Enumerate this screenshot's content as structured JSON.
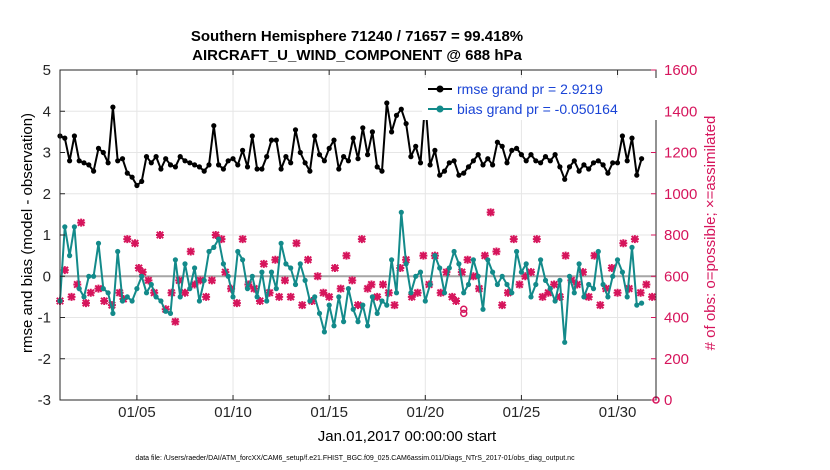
{
  "chart_data": {
    "type": "line",
    "title": "Southern Hemisphere 71240 / 71657 = 99.418%",
    "subtitle": "AIRCRAFT_U_WIND_COMPONENT @ 688 hPa",
    "xlabel": "Jan.01,2017 00:00:00 start",
    "ylabel_left": "rmse and bias (model - observation)",
    "ylabel_right": "# of obs: o=possible; ×=assimilated",
    "ylim_left": [
      -3,
      5
    ],
    "ylim_right": [
      0,
      1600
    ],
    "xlim": [
      1,
      32
    ],
    "yticks_left": [
      "-3",
      "-2",
      "-1",
      "0",
      "1",
      "2",
      "3",
      "4",
      "5"
    ],
    "yticks_right": [
      "0",
      "200",
      "400",
      "600",
      "800",
      "1000",
      "1200",
      "1400",
      "1600"
    ],
    "xticks": [
      {
        "x": 5,
        "label": "01/05"
      },
      {
        "x": 10,
        "label": "01/10"
      },
      {
        "x": 15,
        "label": "01/15"
      },
      {
        "x": 20,
        "label": "01/20"
      },
      {
        "x": 25,
        "label": "01/25"
      },
      {
        "x": 30,
        "label": "01/30"
      }
    ],
    "legend": [
      {
        "label": "rmse grand pr = 2.9219",
        "color": "#000000"
      },
      {
        "label": "bias grand pr = -0.050164",
        "color": "#138a8a"
      }
    ],
    "reference_line_y": 0,
    "series": [
      {
        "name": "rmse",
        "axis": "left",
        "color": "#000000",
        "start": 1,
        "step": 0.25,
        "values": [
          3.4,
          3.35,
          2.8,
          3.4,
          2.8,
          2.75,
          2.7,
          2.55,
          3.1,
          3,
          2.75,
          4.1,
          2.8,
          2.85,
          2.5,
          2.4,
          2.2,
          2.3,
          2.9,
          2.75,
          2.9,
          2.6,
          2.85,
          2.7,
          2.65,
          2.9,
          2.8,
          2.75,
          2.7,
          2.65,
          2.55,
          2.7,
          3.65,
          2.7,
          2.6,
          2.8,
          2.85,
          2.7,
          3.05,
          2.65,
          3.4,
          2.6,
          2.6,
          2.9,
          3.3,
          3.3,
          2.6,
          2.9,
          2.75,
          3.55,
          3,
          2.75,
          2.55,
          3.4,
          2.95,
          2.8,
          3.1,
          3.3,
          2.6,
          2.9,
          2.8,
          3.35,
          2.85,
          3.6,
          2.95,
          3.5,
          2.65,
          2.55,
          4.2,
          3.5,
          3.9,
          4.05,
          3.7,
          2.9,
          3.15,
          2.75,
          4.25,
          2.7,
          3.05,
          2.45,
          2.55,
          2.75,
          2.8,
          2.45,
          2.5,
          2.65,
          2.8,
          2.95,
          2.7,
          2.85,
          2.7,
          3.25,
          3.15,
          2.75,
          3.05,
          3.1,
          2.95,
          2.8,
          2.95,
          2.8,
          2.75,
          2.9,
          2.8,
          2.95,
          2.65,
          2.35,
          2.65,
          2.8,
          2.55,
          2.7,
          2.6,
          2.75,
          2.8,
          2.7,
          2.5,
          2.75,
          2.75,
          3.4,
          2.8,
          3.35,
          2.45,
          2.85
        ]
      },
      {
        "name": "bias",
        "axis": "left",
        "color": "#138a8a",
        "start": 1,
        "step": 0.25,
        "values": [
          -0.6,
          1.2,
          0.5,
          1.2,
          -0.3,
          -0.5,
          0.0,
          0.0,
          0.8,
          -0.3,
          -0.4,
          -0.9,
          0.6,
          -0.6,
          -0.5,
          -0.6,
          -0.3,
          0.0,
          -0.4,
          -0.2,
          -0.5,
          -0.6,
          -0.85,
          -0.9,
          0.4,
          -0.5,
          0.3,
          -0.3,
          0.2,
          -0.6,
          -0.1,
          0.6,
          0.7,
          0.9,
          0.3,
          0.0,
          -0.5,
          0.6,
          0.4,
          -0.3,
          0.0,
          -0.5,
          0.1,
          -0.6,
          0.1,
          -0.3,
          0.8,
          0.3,
          0.2,
          -0.2,
          0.3,
          -0.1,
          -0.6,
          -0.5,
          -0.9,
          -1.35,
          -0.7,
          -1.2,
          -0.5,
          -1.1,
          -0.3,
          -0.8,
          -1.1,
          -0.7,
          -1.2,
          -0.5,
          -0.9,
          -0.6,
          -0.7,
          0.4,
          -0.4,
          1.55,
          0.3,
          -0.4,
          0.0,
          0.1,
          -0.6,
          -0.2,
          0.5,
          0.2,
          -0.4,
          0.2,
          0.6,
          0.3,
          -0.4,
          -0.2,
          0.4,
          0.0,
          -0.8,
          0.4,
          0.1,
          -0.2,
          0.0,
          -0.2,
          -0.4,
          0.6,
          0.1,
          0.3,
          -0.5,
          -0.2,
          0.4,
          -0.1,
          -0.3,
          -0.6,
          -0.1,
          -1.6,
          0.0,
          -0.4,
          0.3,
          -0.5,
          -0.2,
          -0.3,
          0.6,
          -0.2,
          -0.5,
          0.0,
          0.4,
          0.1,
          -0.5,
          0.7,
          -0.7,
          -0.65
        ]
      },
      {
        "name": "obs assimilated",
        "axis": "right",
        "color": "#d6155c",
        "marker": "x",
        "values": [
          [
            1,
            480
          ],
          [
            1.25,
            630
          ],
          [
            1.6,
            500
          ],
          [
            1.9,
            560
          ],
          [
            2.1,
            860
          ],
          [
            2.35,
            470
          ],
          [
            2.6,
            520
          ],
          [
            3.0,
            540
          ],
          [
            3.3,
            480
          ],
          [
            3.7,
            460
          ],
          [
            4.1,
            520
          ],
          [
            4.3,
            490
          ],
          [
            4.5,
            780
          ],
          [
            4.9,
            760
          ],
          [
            5.1,
            640
          ],
          [
            5.3,
            620
          ],
          [
            5.6,
            580
          ],
          [
            5.9,
            520
          ],
          [
            6.2,
            800
          ],
          [
            6.5,
            440
          ],
          [
            6.8,
            520
          ],
          [
            7.0,
            380
          ],
          [
            7.2,
            580
          ],
          [
            7.5,
            520
          ],
          [
            7.8,
            720
          ],
          [
            8.0,
            560
          ],
          [
            8.3,
            580
          ],
          [
            8.6,
            500
          ],
          [
            8.9,
            580
          ],
          [
            9.1,
            800
          ],
          [
            9.4,
            780
          ],
          [
            9.6,
            620
          ],
          [
            9.9,
            540
          ],
          [
            10.2,
            470
          ],
          [
            10.5,
            780
          ],
          [
            10.8,
            560
          ],
          [
            11.1,
            540
          ],
          [
            11.4,
            480
          ],
          [
            11.6,
            660
          ],
          [
            11.9,
            520
          ],
          [
            12.2,
            680
          ],
          [
            12.4,
            500
          ],
          [
            12.7,
            580
          ],
          [
            13.0,
            500
          ],
          [
            13.3,
            760
          ],
          [
            13.6,
            460
          ],
          [
            13.9,
            680
          ],
          [
            14.1,
            480
          ],
          [
            14.4,
            600
          ],
          [
            14.7,
            520
          ],
          [
            15.0,
            500
          ],
          [
            15.3,
            640
          ],
          [
            15.6,
            540
          ],
          [
            15.9,
            700
          ],
          [
            16.2,
            580
          ],
          [
            16.5,
            460
          ],
          [
            16.7,
            780
          ],
          [
            17.0,
            540
          ],
          [
            17.2,
            560
          ],
          [
            17.5,
            500
          ],
          [
            17.8,
            560
          ],
          [
            18.1,
            520
          ],
          [
            18.4,
            460
          ],
          [
            18.7,
            640
          ],
          [
            19.0,
            680
          ],
          [
            19.3,
            500
          ],
          [
            19.6,
            520
          ],
          [
            19.9,
            700
          ],
          [
            20.2,
            560
          ],
          [
            20.5,
            700
          ],
          [
            20.8,
            520
          ],
          [
            21.1,
            620
          ],
          [
            21.4,
            500
          ],
          [
            21.6,
            480
          ],
          [
            21.9,
            620
          ],
          [
            22.2,
            680
          ],
          [
            22.5,
            600
          ],
          [
            22.8,
            540
          ],
          [
            23.1,
            700
          ],
          [
            23.4,
            910
          ],
          [
            23.7,
            720
          ],
          [
            24.0,
            460
          ],
          [
            24.3,
            520
          ],
          [
            24.6,
            780
          ],
          [
            24.9,
            560
          ],
          [
            25.2,
            600
          ],
          [
            25.5,
            620
          ],
          [
            25.8,
            780
          ],
          [
            26.1,
            500
          ],
          [
            26.4,
            520
          ],
          [
            26.7,
            560
          ],
          [
            27.0,
            500
          ],
          [
            27.3,
            700
          ],
          [
            27.6,
            580
          ],
          [
            27.9,
            560
          ],
          [
            28.2,
            620
          ],
          [
            28.5,
            500
          ],
          [
            28.8,
            700
          ],
          [
            29.1,
            460
          ],
          [
            29.4,
            540
          ],
          [
            29.7,
            640
          ],
          [
            30.0,
            520
          ],
          [
            30.3,
            760
          ],
          [
            30.6,
            540
          ],
          [
            30.9,
            780
          ],
          [
            31.2,
            520
          ],
          [
            31.5,
            560
          ],
          [
            31.8,
            500
          ]
        ]
      },
      {
        "name": "obs possible",
        "axis": "right",
        "color": "#d6155c",
        "marker": "o",
        "values": [
          [
            22.0,
            420
          ],
          [
            22.0,
            440
          ],
          [
            32.0,
            0
          ]
        ]
      }
    ]
  },
  "footer": "data file: /Users/raeder/DAI/ATM_forcXX/CAM6_setup/f.e21.FHIST_BGC.f09_025.CAM6assim.011/Diags_NTrS_2017-01/obs_diag_output.nc"
}
